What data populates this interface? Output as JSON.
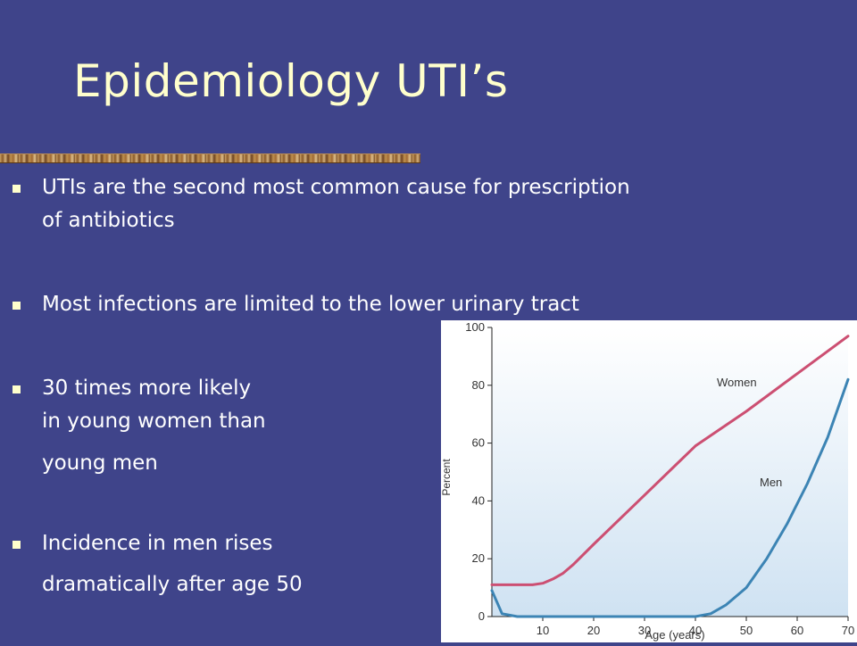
{
  "slide": {
    "title": "Epidemiology UTI’s",
    "bullets": [
      {
        "lines": [
          "UTIs are the second most common cause for prescription",
          "of antibiotics"
        ]
      },
      {
        "lines": [
          "Most infections are limited to the lower urinary tract"
        ]
      },
      {
        "lines": [
          "30 times more likely",
          "in young women than",
          "young men"
        ]
      },
      {
        "lines": [
          "Incidence in men rises",
          "dramatically after age 50"
        ]
      }
    ]
  },
  "colors": {
    "background": "#3f448a",
    "title": "#ffffcc",
    "women_line": "#cc4f72",
    "men_line": "#3c84b4"
  },
  "chart_data": {
    "type": "line",
    "title": "",
    "xlabel": "Age (years)",
    "ylabel": "Percent",
    "xlim": [
      0,
      70
    ],
    "ylim": [
      0,
      100
    ],
    "x_ticks": [
      10,
      20,
      30,
      40,
      50,
      60,
      70
    ],
    "y_ticks": [
      0,
      20,
      40,
      60,
      80,
      100
    ],
    "grid": false,
    "series": [
      {
        "name": "Women",
        "x": [
          0,
          4,
          8,
          10,
          12,
          14,
          16,
          20,
          30,
          40,
          50,
          60,
          70
        ],
        "y": [
          11,
          11,
          11,
          11.5,
          13,
          15,
          18,
          25,
          42,
          59,
          71,
          84,
          97
        ]
      },
      {
        "name": "Men",
        "x": [
          0,
          1,
          2,
          5,
          10,
          20,
          30,
          40,
          43,
          46,
          50,
          54,
          58,
          62,
          66,
          68,
          70
        ],
        "y": [
          9,
          5,
          1,
          0,
          0,
          0,
          0,
          0,
          1,
          4,
          10,
          20,
          32,
          46,
          62,
          72,
          82
        ]
      }
    ]
  }
}
